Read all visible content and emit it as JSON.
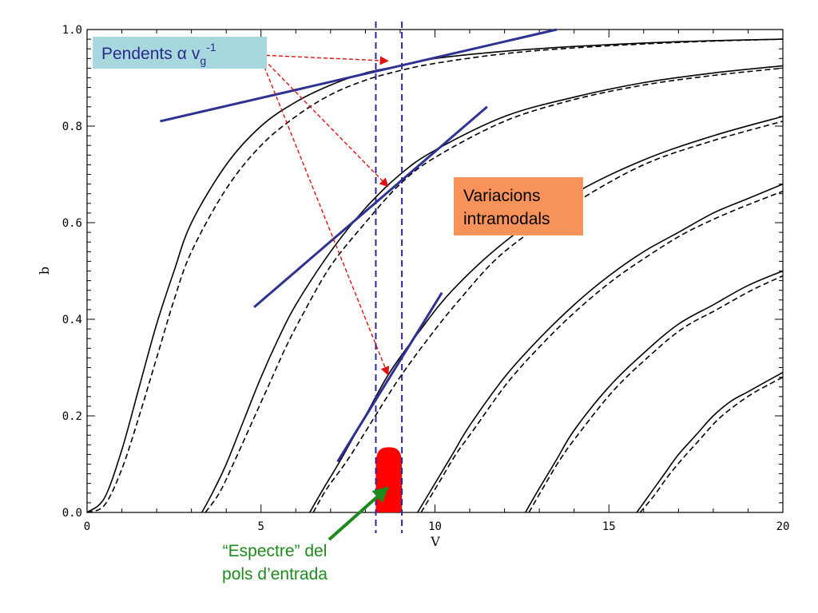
{
  "chart_data": {
    "type": "line",
    "xlabel": "V",
    "ylabel": "b",
    "xlim": [
      0,
      20
    ],
    "ylim": [
      0,
      1
    ],
    "x_ticks": [
      {
        "v": 0,
        "label": "0"
      },
      {
        "v": 5,
        "label": "5"
      },
      {
        "v": 10,
        "label": "10"
      },
      {
        "v": 15,
        "label": "15"
      },
      {
        "v": 20,
        "label": "20"
      }
    ],
    "y_ticks": [
      {
        "v": 0,
        "label": "0.0"
      },
      {
        "v": 0.2,
        "label": "0.2"
      },
      {
        "v": 0.4,
        "label": "0.4"
      },
      {
        "v": 0.6,
        "label": "0.6"
      },
      {
        "v": 0.8,
        "label": "0.8"
      },
      {
        "v": 1.0,
        "label": "1.0"
      }
    ],
    "grid": false,
    "series": [
      {
        "style": "solid",
        "color": "#000000",
        "x": [
          0,
          0.5,
          1,
          1.5,
          2,
          2.5,
          3,
          4,
          5,
          6,
          7,
          8,
          9,
          10,
          12,
          14,
          16,
          18,
          20
        ],
        "y": [
          0,
          0.03,
          0.13,
          0.26,
          0.39,
          0.5,
          0.6,
          0.72,
          0.8,
          0.85,
          0.885,
          0.91,
          0.925,
          0.94,
          0.955,
          0.965,
          0.972,
          0.977,
          0.98
        ]
      },
      {
        "style": "dashed",
        "color": "#000000",
        "x": [
          0,
          0.5,
          1,
          1.5,
          2,
          2.5,
          3,
          4,
          5,
          6,
          7,
          8,
          9,
          10,
          12,
          14,
          16,
          18,
          20
        ],
        "y": [
          0,
          0.015,
          0.09,
          0.2,
          0.32,
          0.44,
          0.54,
          0.67,
          0.76,
          0.82,
          0.865,
          0.895,
          0.915,
          0.93,
          0.95,
          0.962,
          0.97,
          0.976,
          0.98
        ]
      },
      {
        "style": "solid",
        "color": "#000000",
        "x": [
          3.3,
          3.6,
          4,
          4.5,
          5,
          5.5,
          6,
          7,
          8,
          9,
          10,
          12,
          14,
          16,
          18,
          20
        ],
        "y": [
          0,
          0.04,
          0.1,
          0.19,
          0.28,
          0.36,
          0.43,
          0.54,
          0.63,
          0.7,
          0.75,
          0.82,
          0.86,
          0.89,
          0.91,
          0.925
        ]
      },
      {
        "style": "dashed",
        "color": "#000000",
        "x": [
          3.4,
          3.8,
          4.2,
          4.7,
          5.2,
          5.7,
          6.2,
          7,
          8,
          9,
          10,
          12,
          14,
          16,
          18,
          20
        ],
        "y": [
          0,
          0.04,
          0.1,
          0.18,
          0.26,
          0.34,
          0.41,
          0.51,
          0.6,
          0.68,
          0.735,
          0.81,
          0.855,
          0.885,
          0.905,
          0.92
        ]
      },
      {
        "style": "solid",
        "color": "#000000",
        "x": [
          6.4,
          6.8,
          7.3,
          8,
          8.7,
          9.5,
          10.5,
          12,
          14,
          16,
          18,
          20
        ],
        "y": [
          0,
          0.05,
          0.11,
          0.2,
          0.29,
          0.37,
          0.46,
          0.56,
          0.66,
          0.73,
          0.78,
          0.82
        ]
      },
      {
        "style": "dashed",
        "color": "#000000",
        "x": [
          6.5,
          6.9,
          7.5,
          8.2,
          8.9,
          9.7,
          10.7,
          12,
          14,
          16,
          18,
          20
        ],
        "y": [
          0,
          0.05,
          0.11,
          0.19,
          0.27,
          0.35,
          0.44,
          0.54,
          0.64,
          0.72,
          0.77,
          0.81
        ]
      },
      {
        "style": "solid",
        "color": "#000000",
        "x": [
          9.5,
          10,
          10.5,
          11,
          12,
          13,
          14,
          15,
          16,
          17,
          18,
          19,
          20
        ],
        "y": [
          0,
          0.06,
          0.12,
          0.18,
          0.28,
          0.36,
          0.43,
          0.49,
          0.54,
          0.58,
          0.62,
          0.65,
          0.68
        ]
      },
      {
        "style": "dashed",
        "color": "#000000",
        "x": [
          9.6,
          10.1,
          10.6,
          11.1,
          12.1,
          13.1,
          14.1,
          15.1,
          16.1,
          17.1,
          18.1,
          19.1,
          20
        ],
        "y": [
          0,
          0.06,
          0.12,
          0.17,
          0.27,
          0.35,
          0.42,
          0.48,
          0.53,
          0.575,
          0.61,
          0.64,
          0.665
        ]
      },
      {
        "style": "solid",
        "color": "#000000",
        "x": [
          12.6,
          13,
          13.5,
          14,
          15,
          16,
          17,
          18,
          19,
          20
        ],
        "y": [
          0,
          0.05,
          0.11,
          0.17,
          0.26,
          0.33,
          0.39,
          0.43,
          0.47,
          0.5
        ]
      },
      {
        "style": "dashed",
        "color": "#000000",
        "x": [
          12.7,
          13.1,
          13.6,
          14.1,
          15.1,
          16.1,
          17.1,
          18.1,
          19.1,
          20
        ],
        "y": [
          0,
          0.05,
          0.11,
          0.16,
          0.25,
          0.32,
          0.38,
          0.42,
          0.46,
          0.49
        ]
      },
      {
        "style": "solid",
        "color": "#000000",
        "x": [
          15.8,
          16.2,
          16.6,
          17,
          17.5,
          18,
          18.5,
          19,
          19.5,
          20
        ],
        "y": [
          0,
          0.04,
          0.08,
          0.12,
          0.16,
          0.2,
          0.23,
          0.25,
          0.27,
          0.29
        ]
      },
      {
        "style": "dashed",
        "color": "#000000",
        "x": [
          15.9,
          16.3,
          16.7,
          17.1,
          17.6,
          18.1,
          18.6,
          19.1,
          19.6,
          20
        ],
        "y": [
          0,
          0.035,
          0.075,
          0.11,
          0.15,
          0.19,
          0.22,
          0.245,
          0.265,
          0.28
        ]
      }
    ],
    "tangent_lines": [
      {
        "x": [
          2.1,
          13.5
        ],
        "y": [
          0.81,
          1.0
        ]
      },
      {
        "x": [
          4.8,
          11.5
        ],
        "y": [
          0.425,
          0.84
        ]
      },
      {
        "x": [
          7.2,
          10.2
        ],
        "y": [
          0.105,
          0.455
        ]
      }
    ],
    "vertical_dashed_lines_x": [
      8.3,
      9.05
    ],
    "input_spectrum": {
      "x_min": 8.3,
      "x_max": 9.05,
      "y_peak": 0.135,
      "color": "#ff0000"
    },
    "annotations": {
      "slopes_box": {
        "text_main": "Pendents",
        "alpha": "α",
        "v": "v",
        "sub": "g",
        "sup": "-1",
        "bg": "#a7d8dd"
      },
      "intramodal_box": {
        "line1": "Variacions",
        "line2": "intramodals",
        "bg": "#f7935a"
      },
      "spectrum_label": {
        "line1": "“Espectre” del",
        "line2": "pols d’entrada"
      },
      "arrow_targets": [
        {
          "x": 8.65,
          "y": 0.935
        },
        {
          "x": 8.65,
          "y": 0.675
        },
        {
          "x": 8.65,
          "y": 0.285
        }
      ]
    }
  }
}
